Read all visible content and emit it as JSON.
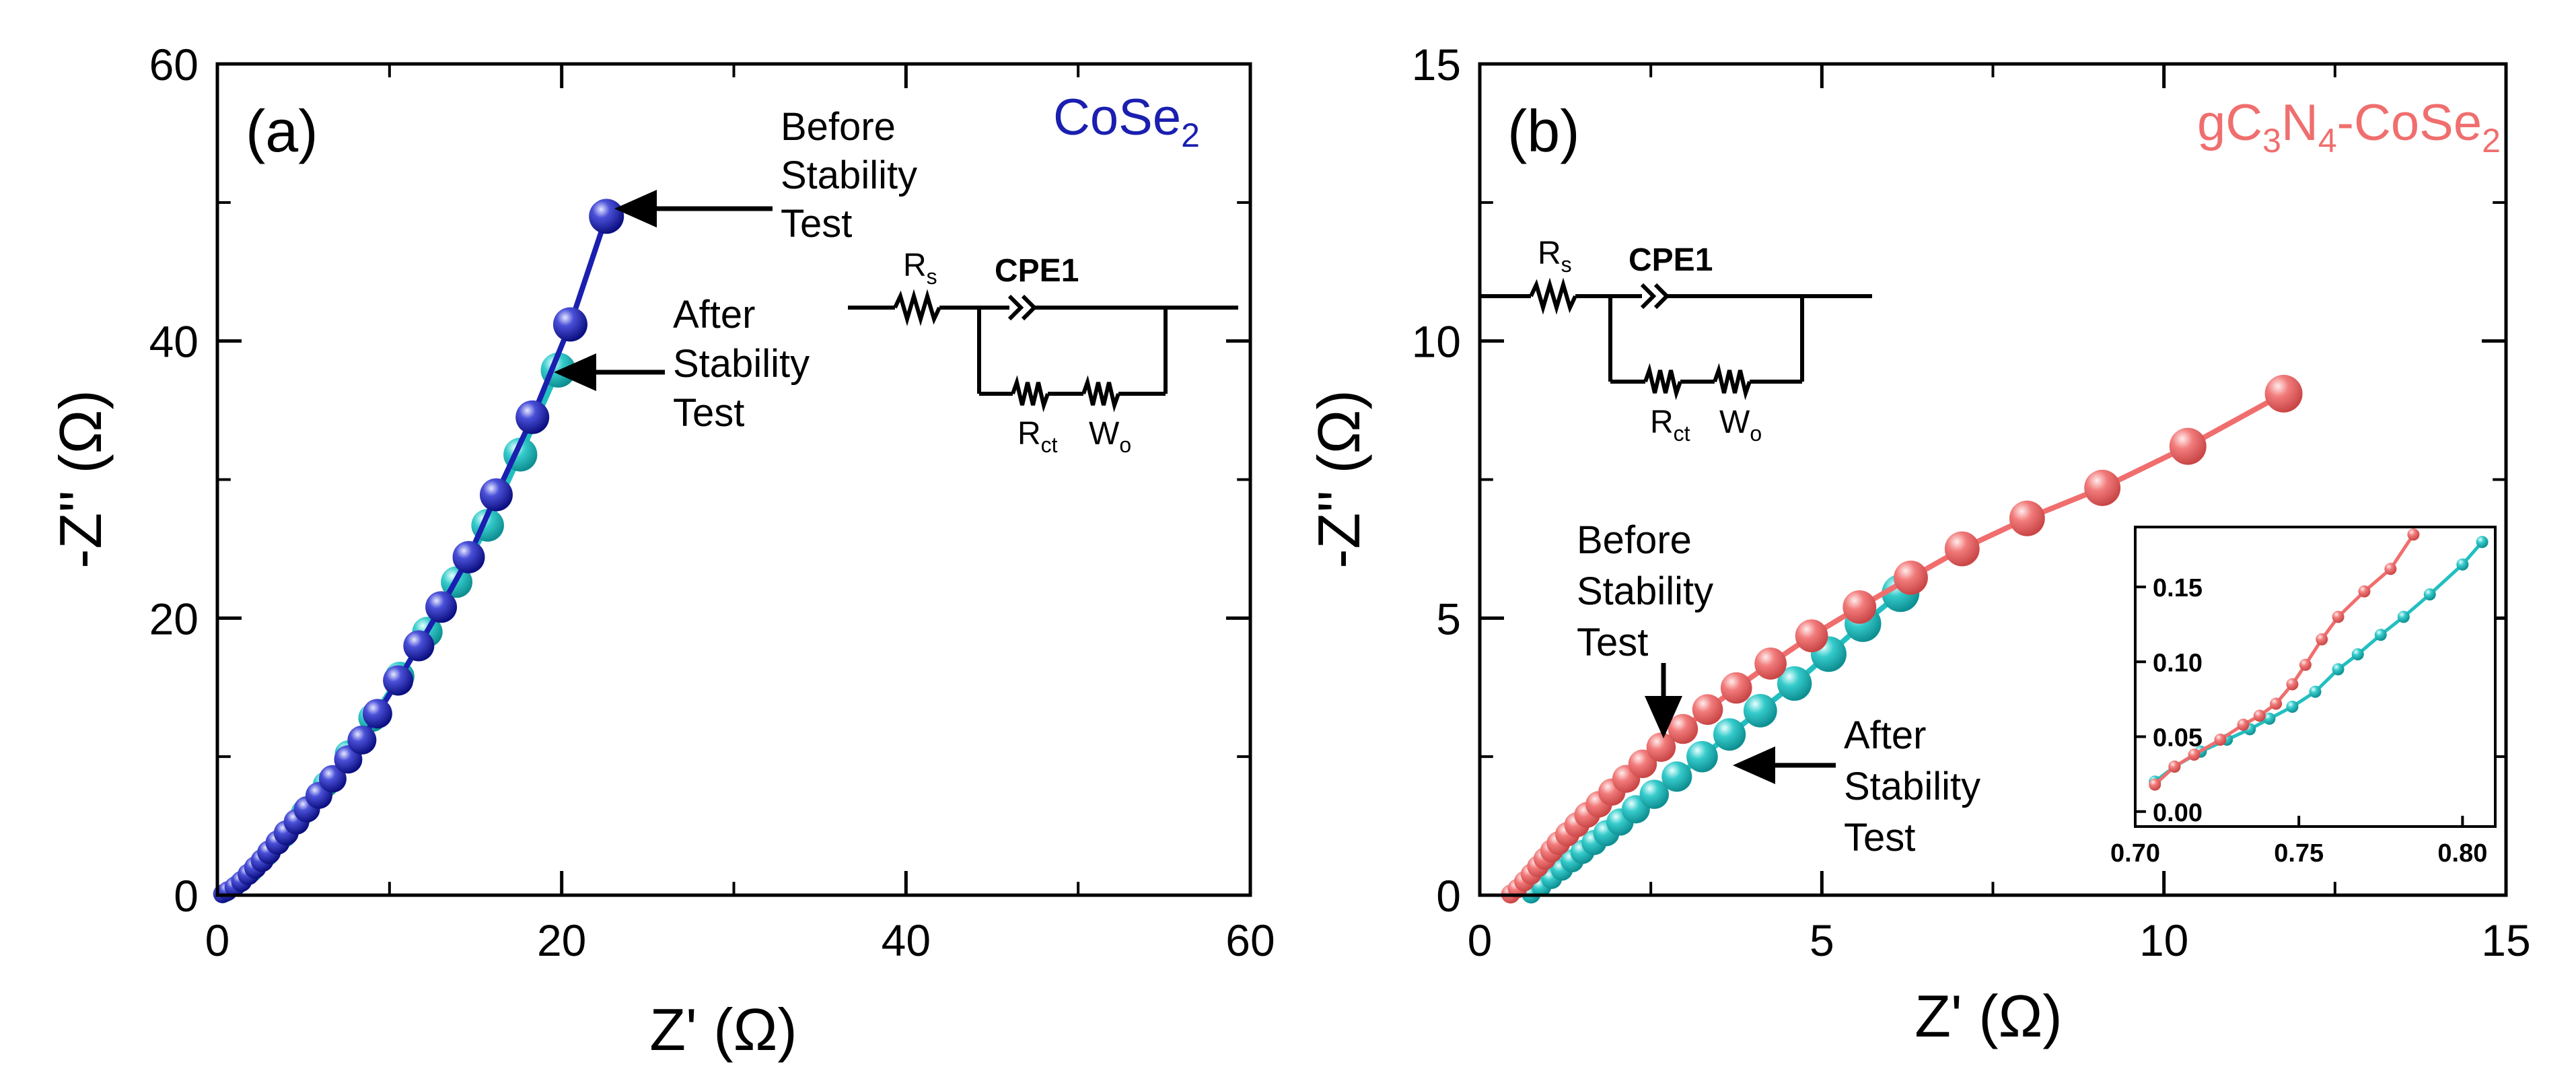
{
  "chart_data": [
    {
      "panel": "(a)",
      "type": "scatter",
      "title": "",
      "legend": "CoSe2",
      "legend_main": "CoSe",
      "legend_sub": "2",
      "xlabel": "Z' (Ω)",
      "ylabel": "-Z'' (Ω)",
      "xlim": [
        0,
        60
      ],
      "ylim": [
        0,
        60
      ],
      "xticks": [
        0,
        20,
        40,
        60
      ],
      "yticks": [
        0,
        20,
        40,
        60
      ],
      "series": [
        {
          "name": "Before Stability Test",
          "color": "#1a1fb0",
          "points": [
            [
              0.3,
              0.1
            ],
            [
              0.6,
              0.3
            ],
            [
              1.0,
              0.6
            ],
            [
              1.4,
              1.0
            ],
            [
              1.8,
              1.5
            ],
            [
              2.2,
              2.0
            ],
            [
              2.6,
              2.5
            ],
            [
              3.0,
              3.1
            ],
            [
              3.5,
              3.8
            ],
            [
              4.0,
              4.5
            ],
            [
              4.6,
              5.3
            ],
            [
              5.2,
              6.2
            ],
            [
              5.9,
              7.2
            ],
            [
              6.7,
              8.4
            ],
            [
              7.6,
              9.8
            ],
            [
              8.4,
              11.2
            ],
            [
              9.3,
              13.1
            ],
            [
              10.5,
              15.5
            ],
            [
              11.7,
              18.0
            ],
            [
              13.0,
              20.8
            ],
            [
              14.6,
              24.4
            ],
            [
              16.2,
              28.9
            ],
            [
              18.3,
              34.5
            ],
            [
              20.5,
              41.2
            ],
            [
              22.6,
              49.0
            ]
          ]
        },
        {
          "name": "After Stability Test",
          "color": "#22bfc0",
          "points": [
            [
              0.5,
              0.2
            ],
            [
              1.2,
              0.8
            ],
            [
              2.0,
              1.7
            ],
            [
              2.9,
              2.9
            ],
            [
              3.9,
              4.3
            ],
            [
              5.0,
              6.0
            ],
            [
              6.3,
              8.0
            ],
            [
              7.6,
              10.2
            ],
            [
              9.0,
              12.8
            ],
            [
              10.6,
              15.8
            ],
            [
              12.2,
              19.0
            ],
            [
              13.9,
              22.6
            ],
            [
              15.7,
              26.7
            ],
            [
              17.6,
              31.8
            ],
            [
              19.8,
              37.9
            ]
          ]
        }
      ],
      "annotations": [
        {
          "lines": [
            "Before",
            "Stability",
            "Test"
          ]
        },
        {
          "lines": [
            "After",
            "Stability",
            "Test"
          ]
        }
      ],
      "circuit": {
        "rs": "R",
        "rs_sub": "s",
        "cpe": "CPE1",
        "rct": "R",
        "rct_sub": "ct",
        "wo": "W",
        "wo_sub": "o"
      }
    },
    {
      "panel": "(b)",
      "type": "scatter",
      "title": "",
      "legend": "gC3N4-CoSe2",
      "legend_parts": [
        "gC",
        "3",
        "N",
        "4",
        "-CoSe",
        "2"
      ],
      "xlabel": "Z' (Ω)",
      "ylabel": "-Z'' (Ω)",
      "xlim": [
        0,
        15
      ],
      "ylim": [
        0,
        15
      ],
      "xticks": [
        0,
        5,
        10,
        15
      ],
      "yticks": [
        0,
        5,
        10,
        15
      ],
      "series": [
        {
          "name": "Before Stability Test",
          "color": "#f06e6e",
          "points": [
            [
              0.45,
              0.02
            ],
            [
              0.55,
              0.12
            ],
            [
              0.65,
              0.25
            ],
            [
              0.75,
              0.38
            ],
            [
              0.85,
              0.52
            ],
            [
              0.95,
              0.66
            ],
            [
              1.05,
              0.8
            ],
            [
              1.15,
              0.94
            ],
            [
              1.28,
              1.1
            ],
            [
              1.42,
              1.27
            ],
            [
              1.57,
              1.45
            ],
            [
              1.74,
              1.64
            ],
            [
              1.93,
              1.86
            ],
            [
              2.14,
              2.1
            ],
            [
              2.38,
              2.37
            ],
            [
              2.65,
              2.67
            ],
            [
              2.97,
              3.0
            ],
            [
              3.33,
              3.35
            ],
            [
              3.75,
              3.74
            ],
            [
              4.25,
              4.18
            ],
            [
              4.85,
              4.68
            ],
            [
              5.55,
              5.2
            ],
            [
              6.3,
              5.73
            ],
            [
              7.05,
              6.25
            ],
            [
              8.0,
              6.8
            ],
            [
              9.1,
              7.35
            ],
            [
              10.35,
              8.1
            ],
            [
              11.75,
              9.05
            ]
          ]
        },
        {
          "name": "After Stability Test",
          "color": "#22bfc0",
          "points": [
            [
              0.75,
              0.02
            ],
            [
              0.9,
              0.15
            ],
            [
              1.05,
              0.3
            ],
            [
              1.2,
              0.46
            ],
            [
              1.35,
              0.62
            ],
            [
              1.5,
              0.78
            ],
            [
              1.67,
              0.95
            ],
            [
              1.85,
              1.12
            ],
            [
              2.05,
              1.32
            ],
            [
              2.28,
              1.55
            ],
            [
              2.55,
              1.82
            ],
            [
              2.88,
              2.14
            ],
            [
              3.25,
              2.5
            ],
            [
              3.65,
              2.9
            ],
            [
              4.1,
              3.33
            ],
            [
              4.6,
              3.82
            ],
            [
              5.1,
              4.35
            ],
            [
              5.6,
              4.9
            ],
            [
              6.15,
              5.45
            ]
          ]
        }
      ],
      "annotations": [
        {
          "lines": [
            "Before",
            "Stability",
            "Test"
          ]
        },
        {
          "lines": [
            "After",
            "Stability",
            "Test"
          ]
        }
      ],
      "circuit": {
        "rs": "R",
        "rs_sub": "s",
        "cpe": "CPE1",
        "rct": "R",
        "rct_sub": "ct",
        "wo": "W",
        "wo_sub": "o"
      },
      "inset": {
        "type": "line",
        "xlim": [
          0.7,
          0.81
        ],
        "ylim": [
          -0.01,
          0.19
        ],
        "xticks": [
          "0.70",
          "0.75",
          "0.80"
        ],
        "yticks": [
          "0.00",
          "0.05",
          "0.10",
          "0.15"
        ],
        "series": [
          {
            "name": "Before Stability Test",
            "color": "#f06e6e",
            "points": [
              [
                0.706,
                0.018
              ],
              [
                0.712,
                0.03
              ],
              [
                0.718,
                0.038
              ],
              [
                0.726,
                0.048
              ],
              [
                0.733,
                0.058
              ],
              [
                0.738,
                0.064
              ],
              [
                0.743,
                0.072
              ],
              [
                0.748,
                0.085
              ],
              [
                0.752,
                0.098
              ],
              [
                0.757,
                0.115
              ],
              [
                0.762,
                0.13
              ],
              [
                0.77,
                0.147
              ],
              [
                0.778,
                0.162
              ],
              [
                0.785,
                0.185
              ]
            ]
          },
          {
            "name": "After Stability Test",
            "color": "#22bfc0",
            "points": [
              [
                0.706,
                0.02
              ],
              [
                0.712,
                0.03
              ],
              [
                0.72,
                0.04
              ],
              [
                0.728,
                0.048
              ],
              [
                0.735,
                0.055
              ],
              [
                0.741,
                0.062
              ],
              [
                0.748,
                0.07
              ],
              [
                0.755,
                0.08
              ],
              [
                0.762,
                0.095
              ],
              [
                0.768,
                0.105
              ],
              [
                0.775,
                0.118
              ],
              [
                0.782,
                0.13
              ],
              [
                0.79,
                0.145
              ],
              [
                0.8,
                0.165
              ],
              [
                0.806,
                0.18
              ]
            ]
          }
        ]
      }
    }
  ]
}
